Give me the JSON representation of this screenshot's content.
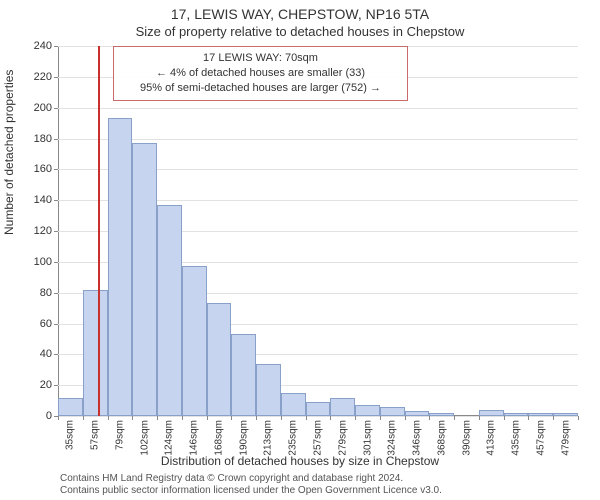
{
  "title_main": "17, LEWIS WAY, CHEPSTOW, NP16 5TA",
  "title_sub": "Size of property relative to detached houses in Chepstow",
  "y_label": "Number of detached properties",
  "x_label": "Distribution of detached houses by size in Chepstow",
  "footer_line1": "Contains HM Land Registry data © Crown copyright and database right 2024.",
  "footer_line2": "Contains public sector information licensed under the Open Government Licence v3.0.",
  "chart": {
    "type": "histogram",
    "ymin": 0,
    "ymax": 240,
    "ytick_step": 20,
    "x_categories": [
      "35sqm",
      "57sqm",
      "79sqm",
      "102sqm",
      "124sqm",
      "146sqm",
      "168sqm",
      "190sqm",
      "213sqm",
      "235sqm",
      "257sqm",
      "279sqm",
      "301sqm",
      "324sqm",
      "346sqm",
      "368sqm",
      "390sqm",
      "413sqm",
      "435sqm",
      "457sqm",
      "479sqm"
    ],
    "values": [
      12,
      82,
      193,
      177,
      137,
      97,
      73,
      53,
      34,
      15,
      9,
      12,
      7,
      6,
      3,
      2,
      0,
      4,
      2,
      2,
      2
    ],
    "bar_fill": "#c7d4ef",
    "bar_border": "#89a0c9",
    "grid_color": "#e2e2e2",
    "background_color": "#ffffff",
    "reference_line": {
      "position_category_index": 1.6,
      "color": "#c9302c"
    },
    "annotation": {
      "line1": "17 LEWIS WAY: 70sqm",
      "line2": "← 4% of detached houses are smaller (33)",
      "line3": "95% of semi-detached houses are larger (752) →",
      "border_color": "#c76b6b"
    }
  }
}
